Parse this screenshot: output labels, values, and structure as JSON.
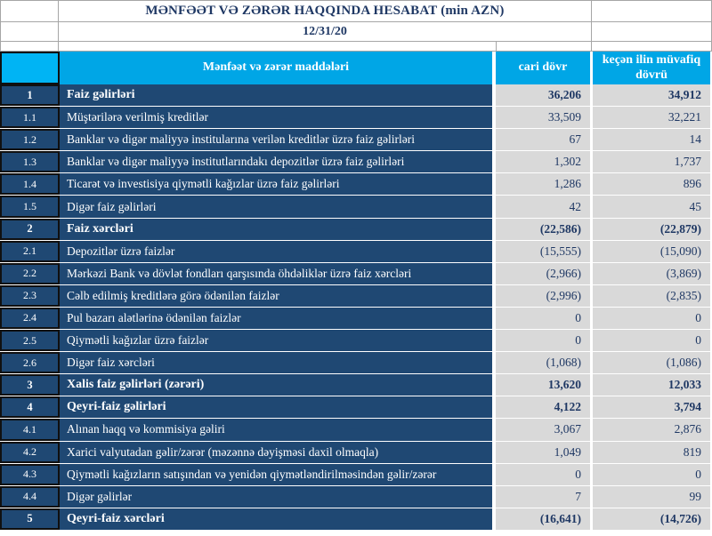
{
  "report": {
    "title": "MƏNFƏƏT VƏ ZƏRƏR HAQQINDA HESABAT (min AZN)",
    "date": "12/31/20"
  },
  "table": {
    "headers": {
      "items": "Mənfəət və zərər maddələri",
      "current": "cari dövr",
      "previous": "keçən ilin müvafiq dövrü"
    },
    "rows": [
      {
        "num": "1",
        "label": "Faiz gəlirləri",
        "current": "36,206",
        "previous": "34,912",
        "bold": true
      },
      {
        "num": "1.1",
        "label": "Müştərilərə verilmiş kreditlər",
        "current": "33,509",
        "previous": "32,221",
        "bold": false
      },
      {
        "num": "1.2",
        "label": "Banklar və digər maliyyə institularına verilən kreditlər üzrə faiz gəlirləri",
        "current": "67",
        "previous": "14",
        "bold": false
      },
      {
        "num": "1.3",
        "label": "Banklar və digər maliyyə institutlarındakı depozitlər üzrə faiz gəlirləri",
        "current": "1,302",
        "previous": "1,737",
        "bold": false
      },
      {
        "num": "1.4",
        "label": "Ticarət və investisiya qiymətli kağızlar üzrə faiz gəlirləri",
        "current": "1,286",
        "previous": "896",
        "bold": false
      },
      {
        "num": "1.5",
        "label": "Digər faiz gəlirləri",
        "current": "42",
        "previous": "45",
        "bold": false
      },
      {
        "num": "2",
        "label": "Faiz xərcləri",
        "current": "(22,586)",
        "previous": "(22,879)",
        "bold": true
      },
      {
        "num": "2.1",
        "label": "Depozitlər üzrə faizlər",
        "current": "(15,555)",
        "previous": "(15,090)",
        "bold": false
      },
      {
        "num": "2.2",
        "label": "Mərkəzi Bank və dövlət fondları qarşısında öhdəliklər üzrə faiz xərcləri",
        "current": "(2,966)",
        "previous": "(3,869)",
        "bold": false
      },
      {
        "num": "2.3",
        "label": "Cəlb edilmiş kreditlərə görə ödənilən faizlər",
        "current": "(2,996)",
        "previous": "(2,835)",
        "bold": false
      },
      {
        "num": "2.4",
        "label": "Pul bazarı alətlərinə ödənilən faizlər",
        "current": "0",
        "previous": "0",
        "bold": false
      },
      {
        "num": "2.5",
        "label": "Qiymətli kağızlar üzrə faizlər",
        "current": "0",
        "previous": "0",
        "bold": false
      },
      {
        "num": "2.6",
        "label": "Digər faiz xərcləri",
        "current": "(1,068)",
        "previous": "(1,086)",
        "bold": false
      },
      {
        "num": "3",
        "label": "Xalis faiz gəlirləri (zərəri)",
        "current": "13,620",
        "previous": "12,033",
        "bold": true
      },
      {
        "num": "4",
        "label": "Qeyri-faiz gəlirləri",
        "current": "4,122",
        "previous": "3,794",
        "bold": true
      },
      {
        "num": "4.1",
        "label": "Alınan haqq və kommisiya gəliri",
        "current": "3,067",
        "previous": "2,876",
        "bold": false
      },
      {
        "num": "4.2",
        "label": "Xarici valyutadan gəlir/zərər (məzənnə dəyişməsi daxil olmaqla)",
        "current": "1,049",
        "previous": "819",
        "bold": false
      },
      {
        "num": "4.3",
        "label": "Qiymətli kağızların satışından və yenidən qiymətləndirilməsindən gəlir/zərər",
        "current": "0",
        "previous": "0",
        "bold": false
      },
      {
        "num": "4.4",
        "label": "Digər gəlirlər",
        "current": "7",
        "previous": "99",
        "bold": false
      },
      {
        "num": "5",
        "label": "Qeyri-faiz xərcləri",
        "current": "(16,641)",
        "previous": "(14,726)",
        "bold": true
      }
    ]
  },
  "colors": {
    "header_blue": "#00A6E6",
    "corner_cyan": "#00B4F4",
    "row_navy": "#1F4873",
    "value_cell_bg": "#D9D9D9",
    "text_navy": "#1F3864",
    "grid_border": "#A6A6A6",
    "black_border": "#101010"
  }
}
